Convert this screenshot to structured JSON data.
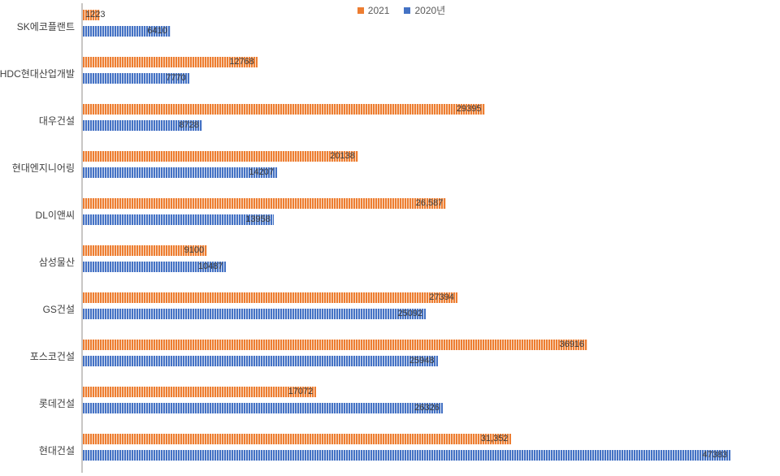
{
  "legend": {
    "items": [
      {
        "label": "2021",
        "color": "#ED7D31"
      },
      {
        "label": "2020년",
        "color": "#4472C4"
      }
    ]
  },
  "colors": {
    "axis_line": "#C8C6C4",
    "label_text": "#404040",
    "value_text": "#3B3B3B",
    "orange_stripe": "#ED7D31",
    "orange_stripe_light": "#FBE2CD",
    "blue_stripe": "#4472C4",
    "blue_stripe_light": "#D9E2F3",
    "background": "#FFFFFF"
  },
  "chart_data": {
    "type": "bar",
    "orientation": "horizontal",
    "title": "",
    "xlabel": "",
    "ylabel": "",
    "grid": false,
    "legend_position": "top-center",
    "bar_pattern": "thin-vertical-stripes",
    "xlim": [
      0,
      51000
    ],
    "categories": [
      "SK에코플랜트",
      "HDC현대산업개발",
      "대우건설",
      "현대엔지니어링",
      "DL이앤씨",
      "삼성물산",
      "GS건설",
      "포스코건설",
      "롯데건설",
      "현대건설"
    ],
    "series": [
      {
        "name": "2021",
        "color": "#ED7D31",
        "pattern_light": "#FBE2CD",
        "values": [
          1223,
          12768,
          29395,
          20138,
          26587,
          9100,
          27394,
          36916,
          17072,
          31352
        ],
        "labels": [
          "1223",
          "12768",
          "29395",
          "20138",
          "26,587",
          "9100",
          "27394",
          "36916",
          "17072",
          "31,352"
        ]
      },
      {
        "name": "2020년",
        "color": "#4472C4",
        "pattern_light": "#D9E2F3",
        "values": [
          6410,
          7770,
          8728,
          14207,
          13958,
          10487,
          25092,
          25948,
          26326,
          47383
        ],
        "labels": [
          "6410",
          "7770",
          "8728",
          "14207",
          "13958",
          "10487",
          "25092",
          "25948",
          "26326",
          "47383"
        ]
      }
    ]
  }
}
